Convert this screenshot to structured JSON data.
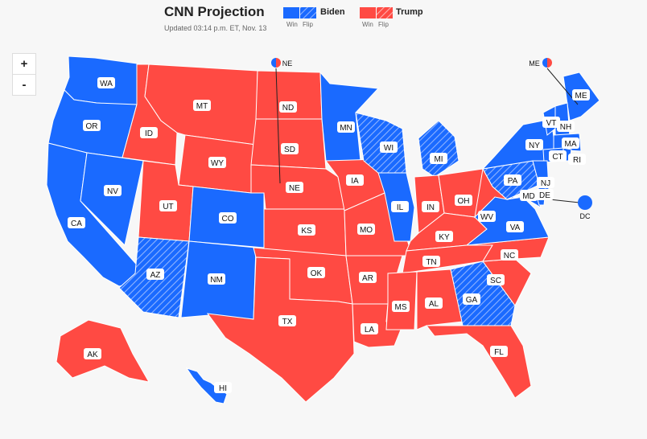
{
  "header": {
    "title": "CNN Projection",
    "updated": "Updated 03:14 p.m. ET, Nov. 13"
  },
  "legend": [
    {
      "name": "Biden",
      "win": "Win",
      "flip": "Flip",
      "color": "#1a6aff"
    },
    {
      "name": "Trump",
      "win": "Win",
      "flip": "Flip",
      "color": "#ff4a43"
    }
  ],
  "zoom": {
    "in_label": "+",
    "out_label": "-"
  },
  "colors": {
    "biden": "#1a6aff",
    "trump": "#ff4a43",
    "background": "#f7f7f7"
  },
  "states": [
    {
      "abbr": "WA",
      "party": "biden",
      "flip": false
    },
    {
      "abbr": "OR",
      "party": "biden",
      "flip": false
    },
    {
      "abbr": "CA",
      "party": "biden",
      "flip": false
    },
    {
      "abbr": "NV",
      "party": "biden",
      "flip": false
    },
    {
      "abbr": "ID",
      "party": "trump",
      "flip": false
    },
    {
      "abbr": "MT",
      "party": "trump",
      "flip": false
    },
    {
      "abbr": "WY",
      "party": "trump",
      "flip": false
    },
    {
      "abbr": "UT",
      "party": "trump",
      "flip": false
    },
    {
      "abbr": "CO",
      "party": "biden",
      "flip": false
    },
    {
      "abbr": "AZ",
      "party": "biden",
      "flip": true
    },
    {
      "abbr": "NM",
      "party": "biden",
      "flip": false
    },
    {
      "abbr": "ND",
      "party": "trump",
      "flip": false
    },
    {
      "abbr": "SD",
      "party": "trump",
      "flip": false
    },
    {
      "abbr": "NE",
      "party": "trump",
      "flip": false
    },
    {
      "abbr": "KS",
      "party": "trump",
      "flip": false
    },
    {
      "abbr": "OK",
      "party": "trump",
      "flip": false
    },
    {
      "abbr": "TX",
      "party": "trump",
      "flip": false
    },
    {
      "abbr": "MN",
      "party": "biden",
      "flip": false
    },
    {
      "abbr": "IA",
      "party": "trump",
      "flip": false
    },
    {
      "abbr": "MO",
      "party": "trump",
      "flip": false
    },
    {
      "abbr": "AR",
      "party": "trump",
      "flip": false
    },
    {
      "abbr": "LA",
      "party": "trump",
      "flip": false
    },
    {
      "abbr": "WI",
      "party": "biden",
      "flip": true
    },
    {
      "abbr": "IL",
      "party": "biden",
      "flip": false
    },
    {
      "abbr": "MI",
      "party": "biden",
      "flip": true
    },
    {
      "abbr": "IN",
      "party": "trump",
      "flip": false
    },
    {
      "abbr": "OH",
      "party": "trump",
      "flip": false
    },
    {
      "abbr": "KY",
      "party": "trump",
      "flip": false
    },
    {
      "abbr": "TN",
      "party": "trump",
      "flip": false
    },
    {
      "abbr": "MS",
      "party": "trump",
      "flip": false
    },
    {
      "abbr": "AL",
      "party": "trump",
      "flip": false
    },
    {
      "abbr": "GA",
      "party": "biden",
      "flip": true
    },
    {
      "abbr": "FL",
      "party": "trump",
      "flip": false
    },
    {
      "abbr": "SC",
      "party": "trump",
      "flip": false
    },
    {
      "abbr": "NC",
      "party": "trump",
      "flip": false
    },
    {
      "abbr": "VA",
      "party": "biden",
      "flip": false
    },
    {
      "abbr": "WV",
      "party": "trump",
      "flip": false
    },
    {
      "abbr": "PA",
      "party": "biden",
      "flip": true
    },
    {
      "abbr": "NY",
      "party": "biden",
      "flip": false
    },
    {
      "abbr": "ME",
      "party": "biden",
      "flip": false
    },
    {
      "abbr": "VT",
      "party": "biden",
      "flip": false
    },
    {
      "abbr": "NH",
      "party": "biden",
      "flip": false
    },
    {
      "abbr": "MA",
      "party": "biden",
      "flip": false
    },
    {
      "abbr": "CT",
      "party": "biden",
      "flip": false
    },
    {
      "abbr": "RI",
      "party": "biden",
      "flip": false
    },
    {
      "abbr": "NJ",
      "party": "biden",
      "flip": false
    },
    {
      "abbr": "MD",
      "party": "biden",
      "flip": false
    },
    {
      "abbr": "DE",
      "party": "biden",
      "flip": false
    },
    {
      "abbr": "AK",
      "party": "trump",
      "flip": false
    },
    {
      "abbr": "HI",
      "party": "biden",
      "flip": false
    }
  ],
  "callouts": [
    {
      "abbr": "NE",
      "split": true
    },
    {
      "abbr": "ME",
      "split": true
    },
    {
      "abbr": "DC",
      "party": "biden"
    }
  ]
}
